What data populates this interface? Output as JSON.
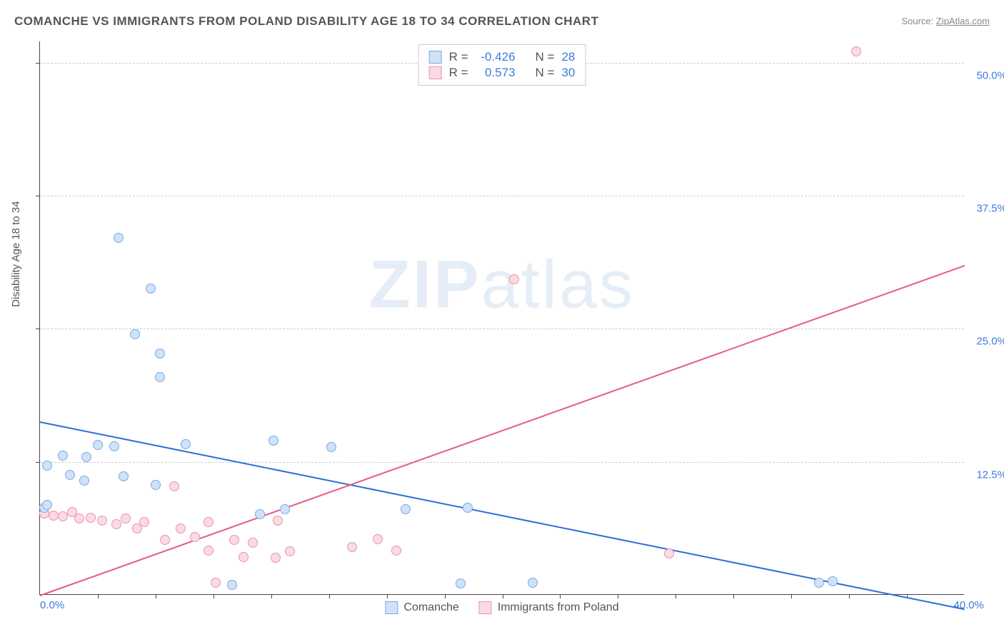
{
  "title": "COMANCHE VS IMMIGRANTS FROM POLAND DISABILITY AGE 18 TO 34 CORRELATION CHART",
  "source_label": "Source: ",
  "source_link": "ZipAtlas.com",
  "y_axis_label": "Disability Age 18 to 34",
  "watermark": "ZIPatlas",
  "chart": {
    "type": "scatter",
    "xlim": [
      0,
      40
    ],
    "ylim": [
      0,
      52
    ],
    "x_tick_step": 2.5,
    "y_tick_step": 12.5,
    "x_min_label": "0.0%",
    "x_max_label": "40.0%",
    "y_tick_labels": [
      "12.5%",
      "25.0%",
      "37.5%",
      "50.0%"
    ],
    "grid_color": "#cccccc",
    "background_color": "#ffffff",
    "series": {
      "comanche": {
        "label": "Comanche",
        "fill": "#cfe2f9",
        "stroke": "#7ba9dc",
        "r_value": "-0.426",
        "n_value": "28",
        "trend_color": "#2c6fd6",
        "trend_y_at_x0": 16.3,
        "trend_y_at_xmax": -1.3,
        "points": [
          [
            0.2,
            8.1
          ],
          [
            0.3,
            8.4
          ],
          [
            0.3,
            12.1
          ],
          [
            1.0,
            13.0
          ],
          [
            1.3,
            11.2
          ],
          [
            1.9,
            10.7
          ],
          [
            2.0,
            12.9
          ],
          [
            2.5,
            14.0
          ],
          [
            3.2,
            13.9
          ],
          [
            3.4,
            33.5
          ],
          [
            3.6,
            11.1
          ],
          [
            4.1,
            24.4
          ],
          [
            4.8,
            28.7
          ],
          [
            5.0,
            10.3
          ],
          [
            5.2,
            22.6
          ],
          [
            5.2,
            20.4
          ],
          [
            6.3,
            14.1
          ],
          [
            8.3,
            0.9
          ],
          [
            9.5,
            7.5
          ],
          [
            10.1,
            14.4
          ],
          [
            10.6,
            8.0
          ],
          [
            12.6,
            13.8
          ],
          [
            15.8,
            8.0
          ],
          [
            18.2,
            1.0
          ],
          [
            18.5,
            8.1
          ],
          [
            21.3,
            1.1
          ],
          [
            33.7,
            1.1
          ],
          [
            34.3,
            1.2
          ]
        ]
      },
      "poland": {
        "label": "Immigrants from Poland",
        "fill": "#fadbe3",
        "stroke": "#e994ac",
        "r_value": "0.573",
        "n_value": "30",
        "trend_color": "#e75a85",
        "trend_y_at_x0": 0.0,
        "trend_y_at_xmax": 31.0,
        "points": [
          [
            0.2,
            7.6
          ],
          [
            0.6,
            7.4
          ],
          [
            1.0,
            7.3
          ],
          [
            1.4,
            7.7
          ],
          [
            1.7,
            7.1
          ],
          [
            2.2,
            7.2
          ],
          [
            2.7,
            6.9
          ],
          [
            3.3,
            6.6
          ],
          [
            3.7,
            7.1
          ],
          [
            4.2,
            6.2
          ],
          [
            4.5,
            6.8
          ],
          [
            5.4,
            5.1
          ],
          [
            5.8,
            10.1
          ],
          [
            6.1,
            6.2
          ],
          [
            6.7,
            5.4
          ],
          [
            7.3,
            4.1
          ],
          [
            7.3,
            6.8
          ],
          [
            7.6,
            1.1
          ],
          [
            8.4,
            5.1
          ],
          [
            8.8,
            3.5
          ],
          [
            9.2,
            4.8
          ],
          [
            10.2,
            3.4
          ],
          [
            10.3,
            6.9
          ],
          [
            10.8,
            4.0
          ],
          [
            13.5,
            4.4
          ],
          [
            14.6,
            5.2
          ],
          [
            15.4,
            4.1
          ],
          [
            20.5,
            29.6
          ],
          [
            27.2,
            3.8
          ],
          [
            35.3,
            51.0
          ]
        ]
      }
    },
    "legend_top_labels": {
      "r": "R =",
      "n": "N ="
    }
  }
}
